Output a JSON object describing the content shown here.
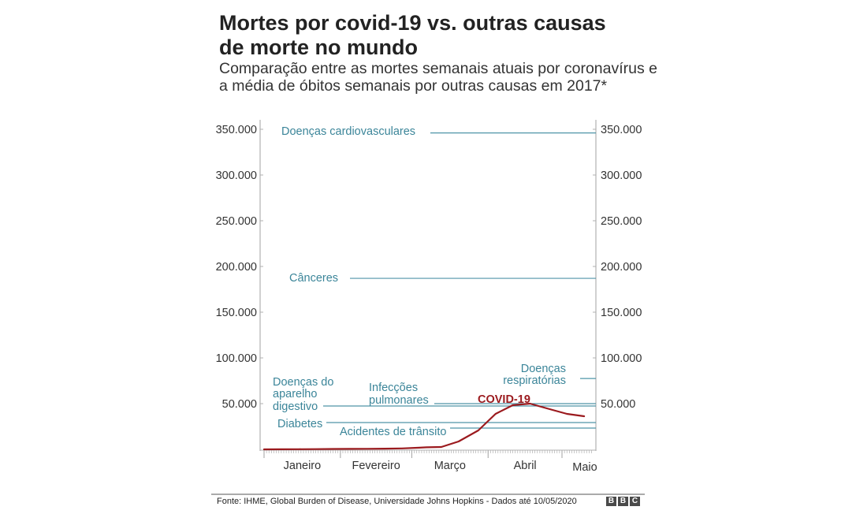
{
  "header": {
    "title_line1": "Mortes por covid-19 vs. outras causas",
    "title_line2": "de morte no mundo",
    "subtitle_line1": "Comparação entre as mortes semanais atuais por coronavírus e",
    "subtitle_line2": "a média de óbitos semanais por outras causas em 2017*"
  },
  "chart_data": {
    "type": "line",
    "title": "Mortes por covid-19 vs. outras causas de morte no mundo",
    "subtitle": "Comparação entre as mortes semanais atuais por coronavírus e a média de óbitos semanais por outras causas em 2017*",
    "xlabel": "",
    "ylabel": "",
    "ylim": [
      0,
      350000
    ],
    "grid": false,
    "y_ticks": [
      50000,
      100000,
      150000,
      200000,
      250000,
      300000,
      350000
    ],
    "y_tick_labels": [
      "50.000",
      "100.000",
      "150.000",
      "200.000",
      "250.000",
      "300.000",
      "350.000"
    ],
    "x_ticks": [
      {
        "label": "Janeiro",
        "day": 0
      },
      {
        "label": "Fevereiro",
        "day": 31
      },
      {
        "label": "Março",
        "day": 60
      },
      {
        "label": "Abril",
        "day": 91
      },
      {
        "label": "Maio",
        "day": 121
      }
    ],
    "x_range_days": [
      0,
      133
    ],
    "reference_lines": [
      {
        "name": "Doenças cardiovasculares",
        "value": 346000
      },
      {
        "name": "Cânceres",
        "value": 187000
      },
      {
        "name": "Doenças respiratórias",
        "value": 77500
      },
      {
        "name": "Infecções pulmonares",
        "value": 50000
      },
      {
        "name": "Doenças do aparelho digestivo",
        "value": 47400
      },
      {
        "name": "Diabetes",
        "value": 29300
      },
      {
        "name": "Acidentes de trânsito",
        "value": 23300
      }
    ],
    "series": [
      {
        "name": "COVID-19",
        "color": "#9b1a1e",
        "days": [
          0,
          7,
          14,
          21,
          28,
          35,
          42,
          49,
          56,
          63,
          66,
          72,
          79,
          87,
          94,
          101,
          108,
          116,
          123,
          130
        ],
        "values": [
          0,
          100,
          200,
          300,
          400,
          500,
          600,
          800,
          1000,
          1800,
          2200,
          2600,
          8600,
          20700,
          38800,
          48300,
          50000,
          44000,
          38800,
          36200
        ]
      }
    ],
    "labels": {
      "cardio": "Doenças cardiovasculares",
      "cancer": "Cânceres",
      "resp_line1": "Doenças",
      "resp_line2": "respiratórias",
      "pulm_line1": "Infecções",
      "pulm_line2": "pulmonares",
      "dig_line1": "Doenças do",
      "dig_line2": "aparelho",
      "dig_line3": "digestivo",
      "diabetes": "Diabetes",
      "traffic": "Acidentes de trânsito",
      "covid": "COVID-19"
    },
    "colors": {
      "reference": "#4f95a8",
      "covid": "#9b1a1e",
      "axis": "#b0b0b0"
    }
  },
  "footer": {
    "source": "Fonte: IHME, Global Burden of Disease, Universidade Johns Hopkins - Dados até 10/05/2020",
    "logo_letters": [
      "B",
      "B",
      "C"
    ]
  }
}
